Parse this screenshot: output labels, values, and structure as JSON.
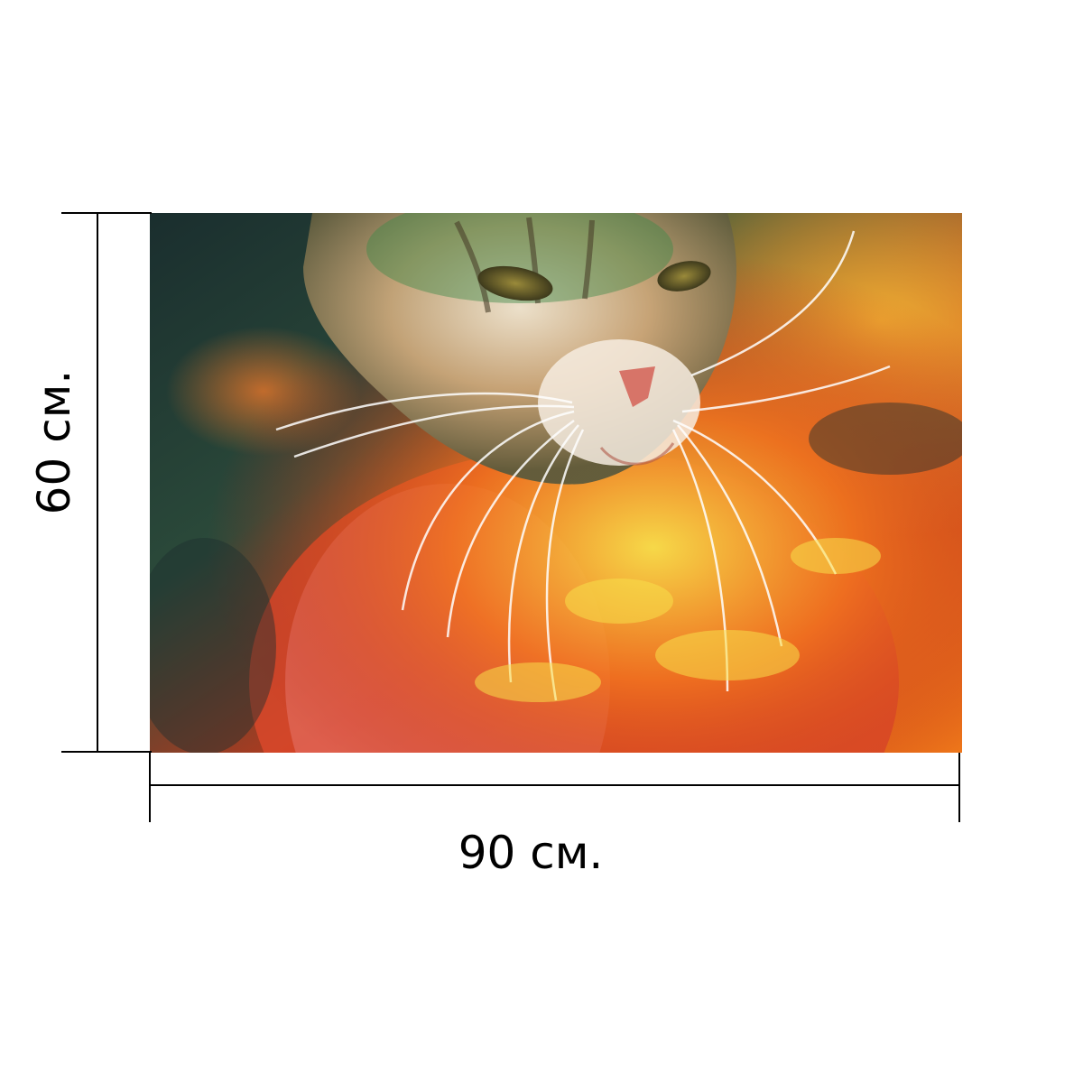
{
  "dimensions": {
    "height_label": "60 см.",
    "width_label": "90 см."
  },
  "picture": {
    "subject": "cat-portrait",
    "palette": {
      "dark_teal": "#1c3a3a",
      "green": "#3f7a45",
      "orange": "#f06a1e",
      "red": "#e8361d",
      "yellow": "#f4d43a",
      "pink": "#e77a72",
      "fur_light": "#f2e6d0"
    }
  }
}
